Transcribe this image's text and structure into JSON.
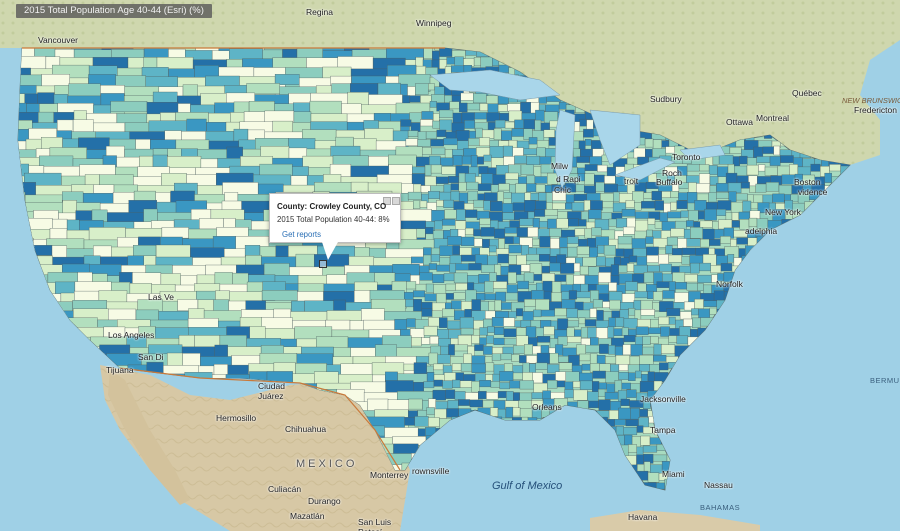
{
  "layer_title": "2015 Total Population Age 40-44 (Esri) (%)",
  "legend_colors": [
    "#f7fbe5",
    "#d8efc9",
    "#b2dfbe",
    "#8ccdbe",
    "#5eb4c6",
    "#3a97c2",
    "#2470a8"
  ],
  "basemap_colors": {
    "land": "#d9cba9",
    "water": "#9fd0e6",
    "lakes": "#a9d6ea",
    "border": "#c9793a"
  },
  "popup": {
    "title": "County: Crowley County, CO",
    "field": "2015 Total Population 40-44:  8%",
    "link": "Get reports"
  },
  "labels": {
    "regina": "Regina",
    "winnipeg": "Winnipeg",
    "vancouver": "Vancouver",
    "sudbury": "Sudbury",
    "quebec": "Québec",
    "ottawa": "Ottawa",
    "montreal": "Montreal",
    "new_brunswick": "NEW BRUNSWICK",
    "fredericton": "Fredericton",
    "toronto": "Toronto",
    "rochester": "Roch",
    "buffalo": "Buffalo",
    "boston": "Boston",
    "providence": "vidence",
    "new_york": "New York",
    "philadelphia": "adelphia",
    "norfolk": "Norfolk",
    "milwaukee": "Milw",
    "grand_rapids": "d Rapi",
    "chicago": "Chic",
    "detroit": "troit",
    "tijuana": "Tijuana",
    "los_angeles": "Los Angeles",
    "las_vegas": "Las Ve",
    "san_diego": "San Di",
    "ciudad_juarez": "Ciudad\nJuárez",
    "hermosillo": "Hermosillo",
    "chihuahua": "Chihuahua",
    "mexico": "MEXICO",
    "monterrey": "Monterrey",
    "brownsville": "rownsville",
    "culiacan": "Culiacán",
    "durango": "Durango",
    "mazatlan": "Mazatlán",
    "san_luis_potosi": "San Luis\nPotosí",
    "jacksonville": "Jacksonville",
    "tampa": "Tampa",
    "miami": "Miami",
    "nassau": "Nassau",
    "bahamas": "BAHAMAS",
    "havana": "Havana",
    "bermuda": "BERMUDA",
    "orleans": "Orleans",
    "gulf_of_mexico": "Gulf of Mexico"
  }
}
